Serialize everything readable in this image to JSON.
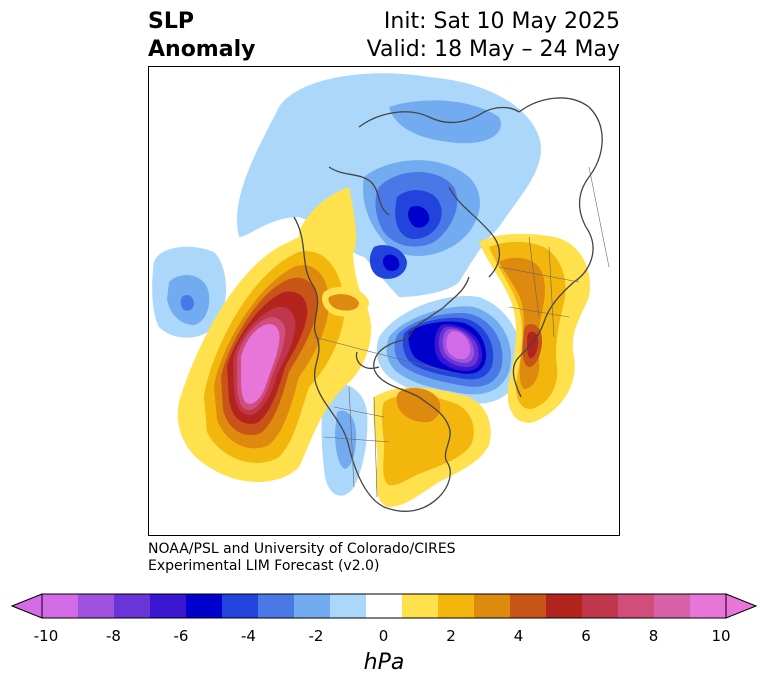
{
  "title": {
    "left_line1": "SLP",
    "left_line2": "Anomaly",
    "right_line1": "Init: Sat 10 May 2025",
    "right_line2": "Valid: 18 May – 24 May"
  },
  "credit": {
    "line1": "NOAA/PSL and University of Colorado/CIRES",
    "line2": "Experimental LIM Forecast (v2.0)"
  },
  "colorbar": {
    "units": "hPa",
    "ticks": [
      "-10",
      "-8",
      "-6",
      "-4",
      "-2",
      "0",
      "2",
      "4",
      "6",
      "8",
      "10"
    ],
    "colors": [
      "#d36be6",
      "#9e52de",
      "#6a35d8",
      "#3a16d0",
      "#0000cc",
      "#2244dd",
      "#4a78e6",
      "#73abf0",
      "#abd8fa",
      "#ffffff",
      "#ffe14d",
      "#f2b60c",
      "#de8a0e",
      "#c85418",
      "#b3241f",
      "#c0364b",
      "#d04d7c",
      "#d961aa",
      "#e876d9"
    ],
    "under_color": "#d36be6",
    "over_color": "#e876d9"
  },
  "map": {
    "features": [
      "north-polar-stereographic projection",
      "coastlines",
      "country borders",
      "US state borders"
    ]
  }
}
